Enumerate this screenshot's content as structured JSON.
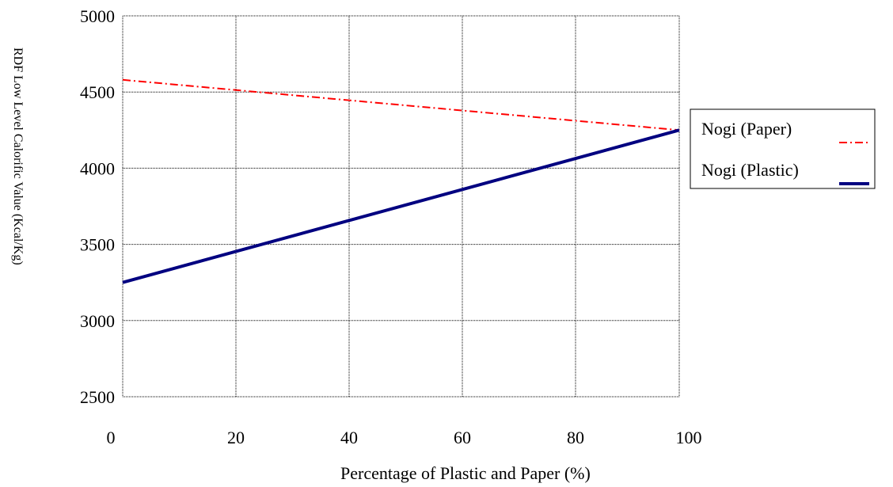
{
  "chart_data": {
    "type": "line",
    "title": "",
    "xlabel": "Percentage of Plastic and Paper (%)",
    "ylabel": "RDF Low Level Calorific Value (Kcal/Kg)",
    "xlim": [
      0,
      100
    ],
    "ylim": [
      2500,
      5000
    ],
    "x_ticks": [
      "0",
      "20",
      "40",
      "60",
      "80",
      "100"
    ],
    "y_ticks": [
      "5000",
      "4500",
      "4000",
      "3500",
      "3000",
      "2500"
    ],
    "grid": true,
    "legend_position": "right",
    "series": [
      {
        "name": "Nogi (Paper)",
        "color": "#ff0000",
        "style": "dash-dot",
        "x": [
          0,
          100
        ],
        "y": [
          4580,
          4250
        ]
      },
      {
        "name": "Nogi (Plastic)",
        "color": "#000080",
        "style": "solid",
        "x": [
          0,
          100
        ],
        "y": [
          3250,
          4250
        ]
      }
    ]
  }
}
